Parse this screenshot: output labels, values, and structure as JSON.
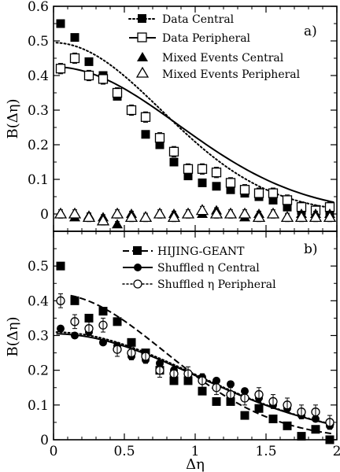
{
  "chart_data": [
    {
      "panel": "a)",
      "type": "scatter",
      "xlabel": "",
      "ylabel": "B(Δη)",
      "xlim": [
        0,
        2
      ],
      "ylim": [
        -0.05,
        0.6
      ],
      "y_ticks": [
        0,
        0.1,
        0.2,
        0.3,
        0.4,
        0.5,
        0.6
      ],
      "y_tick_labels": [
        "0",
        "0.1",
        "0.2",
        "0.3",
        "0.4",
        "0.5",
        "0.6"
      ],
      "legend_position": "top-right",
      "series": [
        {
          "name": "Data Central",
          "marker": "filled-square",
          "line": "dotted",
          "x": [
            0.05,
            0.15,
            0.25,
            0.35,
            0.45,
            0.55,
            0.65,
            0.75,
            0.85,
            0.95,
            1.05,
            1.15,
            1.25,
            1.35,
            1.45,
            1.55,
            1.65,
            1.75,
            1.85,
            1.95
          ],
          "y": [
            0.55,
            0.51,
            0.44,
            0.4,
            0.34,
            0.3,
            0.23,
            0.2,
            0.15,
            0.11,
            0.09,
            0.08,
            0.07,
            0.06,
            0.05,
            0.04,
            0.02,
            0.01,
            0.01,
            0.0
          ],
          "errors": [
            0.008,
            0.008,
            0.008,
            0.008,
            0.008,
            0.008,
            0.008,
            0.008,
            0.008,
            0.008,
            0.008,
            0.008,
            0.008,
            0.008,
            0.008,
            0.008,
            0.008,
            0.008,
            0.008,
            0.008
          ]
        },
        {
          "name": "Data Peripheral",
          "marker": "open-square",
          "line": "solid",
          "x": [
            0.05,
            0.15,
            0.25,
            0.35,
            0.45,
            0.55,
            0.65,
            0.75,
            0.85,
            0.95,
            1.05,
            1.15,
            1.25,
            1.35,
            1.45,
            1.55,
            1.65,
            1.75,
            1.85,
            1.95
          ],
          "y": [
            0.42,
            0.45,
            0.4,
            0.39,
            0.35,
            0.3,
            0.28,
            0.22,
            0.18,
            0.13,
            0.13,
            0.12,
            0.09,
            0.07,
            0.06,
            0.06,
            0.04,
            0.02,
            0.01,
            0.02
          ],
          "errors": [
            0.015,
            0.015,
            0.015,
            0.015,
            0.015,
            0.015,
            0.015,
            0.015,
            0.015,
            0.015,
            0.015,
            0.015,
            0.015,
            0.015,
            0.015,
            0.015,
            0.015,
            0.015,
            0.015,
            0.015
          ]
        },
        {
          "name": "Mixed Events Central",
          "marker": "filled-triangle",
          "line": "none",
          "x": [
            0.05,
            0.15,
            0.25,
            0.35,
            0.45,
            0.55,
            0.65,
            0.75,
            0.85,
            0.95,
            1.05,
            1.15,
            1.25,
            1.35,
            1.45,
            1.55,
            1.65,
            1.75,
            1.85,
            1.95
          ],
          "y": [
            0.0,
            -0.01,
            -0.005,
            -0.01,
            -0.03,
            0.0,
            -0.01,
            0.0,
            0.0,
            0.0,
            0.0,
            0.01,
            0.0,
            -0.01,
            0.0,
            0.0,
            -0.01,
            0.0,
            0.0,
            0.0
          ],
          "errors": [
            0.008,
            0.008,
            0.008,
            0.008,
            0.008,
            0.008,
            0.008,
            0.008,
            0.008,
            0.008,
            0.008,
            0.008,
            0.008,
            0.008,
            0.008,
            0.008,
            0.008,
            0.008,
            0.008,
            0.008
          ]
        },
        {
          "name": "Mixed Events Peripheral",
          "marker": "open-triangle",
          "line": "none",
          "x": [
            0.05,
            0.15,
            0.25,
            0.35,
            0.45,
            0.55,
            0.65,
            0.75,
            0.85,
            0.95,
            1.05,
            1.15,
            1.25,
            1.35,
            1.45,
            1.55,
            1.65,
            1.75,
            1.85,
            1.95
          ],
          "y": [
            0.0,
            0.0,
            -0.01,
            -0.02,
            0.0,
            -0.01,
            -0.01,
            0.0,
            -0.01,
            0.0,
            0.01,
            0.0,
            0.0,
            0.0,
            -0.01,
            0.0,
            -0.01,
            -0.01,
            -0.01,
            -0.01
          ],
          "errors": [
            0.012,
            0.012,
            0.012,
            0.012,
            0.012,
            0.012,
            0.012,
            0.012,
            0.012,
            0.012,
            0.012,
            0.012,
            0.012,
            0.012,
            0.012,
            0.012,
            0.012,
            0.012,
            0.012,
            0.012
          ]
        }
      ],
      "fits": [
        {
          "style": "dotted",
          "curve": "gaussian",
          "amplitude": 0.495,
          "sigma": 0.76,
          "x_range": [
            0.02,
            1.98
          ]
        },
        {
          "style": "solid",
          "curve": "gaussian",
          "amplitude": 0.425,
          "sigma": 0.88,
          "x_range": [
            0.02,
            1.98
          ]
        }
      ]
    },
    {
      "panel": "b)",
      "type": "scatter",
      "xlabel": "Δη",
      "ylabel": "B(Δη)",
      "xlim": [
        0,
        2
      ],
      "ylim": [
        0,
        0.6
      ],
      "x_ticks": [
        0,
        0.5,
        1,
        1.5,
        2
      ],
      "x_tick_labels": [
        "0",
        "0.5",
        "1",
        "1.5",
        "2"
      ],
      "y_ticks": [
        0,
        0.1,
        0.2,
        0.3,
        0.4,
        0.5
      ],
      "y_tick_labels": [
        "0",
        "0.1",
        "0.2",
        "0.3",
        "0.4",
        "0.5"
      ],
      "legend_position": "top-right",
      "series": [
        {
          "name": "HIJING-GEANT",
          "marker": "filled-square",
          "line": "dashed",
          "x": [
            0.05,
            0.15,
            0.25,
            0.35,
            0.45,
            0.55,
            0.65,
            0.75,
            0.85,
            0.95,
            1.05,
            1.15,
            1.25,
            1.35,
            1.45,
            1.55,
            1.65,
            1.75,
            1.85,
            1.95
          ],
          "y": [
            0.5,
            0.4,
            0.35,
            0.37,
            0.34,
            0.28,
            0.25,
            0.2,
            0.17,
            0.17,
            0.14,
            0.11,
            0.11,
            0.07,
            0.09,
            0.06,
            0.04,
            0.01,
            0.03,
            0.0
          ],
          "errors": [
            0.008,
            0.008,
            0.008,
            0.008,
            0.008,
            0.008,
            0.008,
            0.008,
            0.008,
            0.008,
            0.008,
            0.008,
            0.008,
            0.008,
            0.008,
            0.008,
            0.008,
            0.008,
            0.008,
            0.008
          ]
        },
        {
          "name": "Shuffled η Central",
          "marker": "filled-circle",
          "line": "solid",
          "x": [
            0.05,
            0.15,
            0.25,
            0.35,
            0.45,
            0.55,
            0.65,
            0.75,
            0.85,
            0.95,
            1.05,
            1.15,
            1.25,
            1.35,
            1.45,
            1.55,
            1.65,
            1.75,
            1.85,
            1.95
          ],
          "y": [
            0.32,
            0.3,
            0.31,
            0.28,
            0.27,
            0.24,
            0.23,
            0.22,
            0.2,
            0.19,
            0.18,
            0.17,
            0.16,
            0.14,
            0.12,
            0.1,
            0.09,
            0.07,
            0.06,
            0.04
          ],
          "errors": [
            0.008,
            0.008,
            0.008,
            0.008,
            0.008,
            0.008,
            0.008,
            0.008,
            0.008,
            0.008,
            0.008,
            0.008,
            0.008,
            0.008,
            0.008,
            0.008,
            0.008,
            0.008,
            0.008,
            0.008
          ]
        },
        {
          "name": "Shuffled η Peripheral",
          "marker": "open-circle",
          "line": "dotted",
          "x": [
            0.05,
            0.15,
            0.25,
            0.35,
            0.45,
            0.55,
            0.65,
            0.75,
            0.85,
            0.95,
            1.05,
            1.15,
            1.25,
            1.35,
            1.45,
            1.55,
            1.65,
            1.75,
            1.85,
            1.95
          ],
          "y": [
            0.4,
            0.34,
            0.32,
            0.33,
            0.26,
            0.25,
            0.24,
            0.2,
            0.19,
            0.19,
            0.17,
            0.15,
            0.13,
            0.12,
            0.13,
            0.11,
            0.1,
            0.08,
            0.08,
            0.05
          ],
          "errors": [
            0.02,
            0.02,
            0.02,
            0.02,
            0.02,
            0.02,
            0.02,
            0.02,
            0.02,
            0.02,
            0.02,
            0.02,
            0.02,
            0.02,
            0.02,
            0.02,
            0.02,
            0.02,
            0.02,
            0.02
          ]
        }
      ],
      "fits": [
        {
          "style": "dashed",
          "curve": "gaussian",
          "amplitude": 0.42,
          "sigma": 0.78,
          "x_range": [
            0.12,
            1.98
          ]
        },
        {
          "style": "solid",
          "curve": "gaussian",
          "amplitude": 0.305,
          "sigma": 1.0,
          "x_range": [
            0.02,
            1.98
          ]
        },
        {
          "style": "dotted",
          "curve": "gaussian",
          "amplitude": 0.31,
          "sigma": 1.0,
          "x_range": [
            0.02,
            1.98
          ]
        }
      ]
    }
  ]
}
